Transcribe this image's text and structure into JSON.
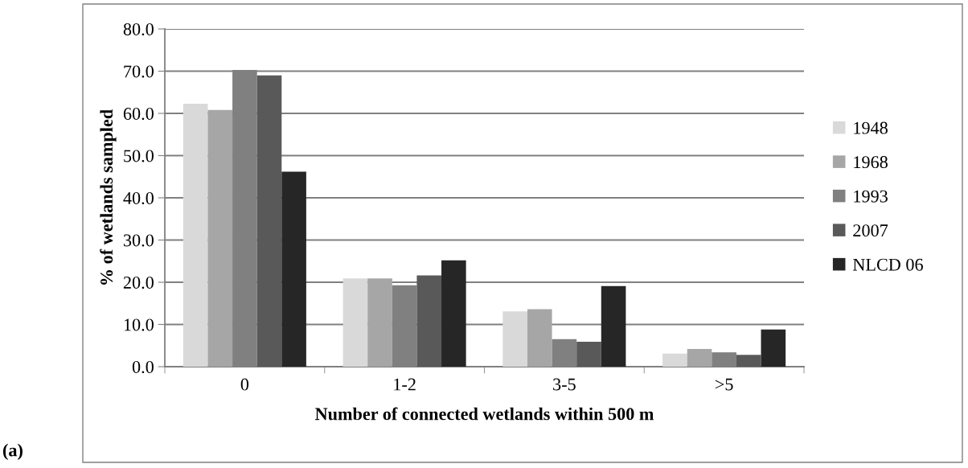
{
  "chart_data": {
    "type": "bar",
    "xlabel": "Number of connected wetlands within 500 m",
    "ylabel": "% of wetlands sampled",
    "categories": [
      "0",
      "1-2",
      "3-5",
      ">5"
    ],
    "series": [
      {
        "name": "1948",
        "color": "#d9d9d9",
        "values": [
          62.3,
          20.9,
          13.1,
          3.1
        ]
      },
      {
        "name": "1968",
        "color": "#a6a6a6",
        "values": [
          60.8,
          20.9,
          13.6,
          4.2
        ]
      },
      {
        "name": "1993",
        "color": "#808080",
        "values": [
          70.3,
          19.3,
          6.5,
          3.4
        ]
      },
      {
        "name": "2007",
        "color": "#595959",
        "values": [
          69.0,
          21.6,
          5.9,
          2.8
        ]
      },
      {
        "name": "NLCD 06",
        "color": "#262626",
        "values": [
          46.2,
          25.2,
          19.1,
          8.8
        ]
      }
    ],
    "ylim": [
      0,
      80
    ],
    "yticks": [
      {
        "value": 0,
        "label": "0.0"
      },
      {
        "value": 10,
        "label": "10.0"
      },
      {
        "value": 20,
        "label": "20.0"
      },
      {
        "value": 30,
        "label": "30.0"
      },
      {
        "value": 40,
        "label": "40.0"
      },
      {
        "value": 50,
        "label": "50.0"
      },
      {
        "value": 60,
        "label": "60.0"
      },
      {
        "value": 70,
        "label": "70.0"
      },
      {
        "value": 80,
        "label": "80.0"
      }
    ],
    "grid": "y",
    "legend": "right",
    "annotations": [
      "(a)"
    ]
  }
}
